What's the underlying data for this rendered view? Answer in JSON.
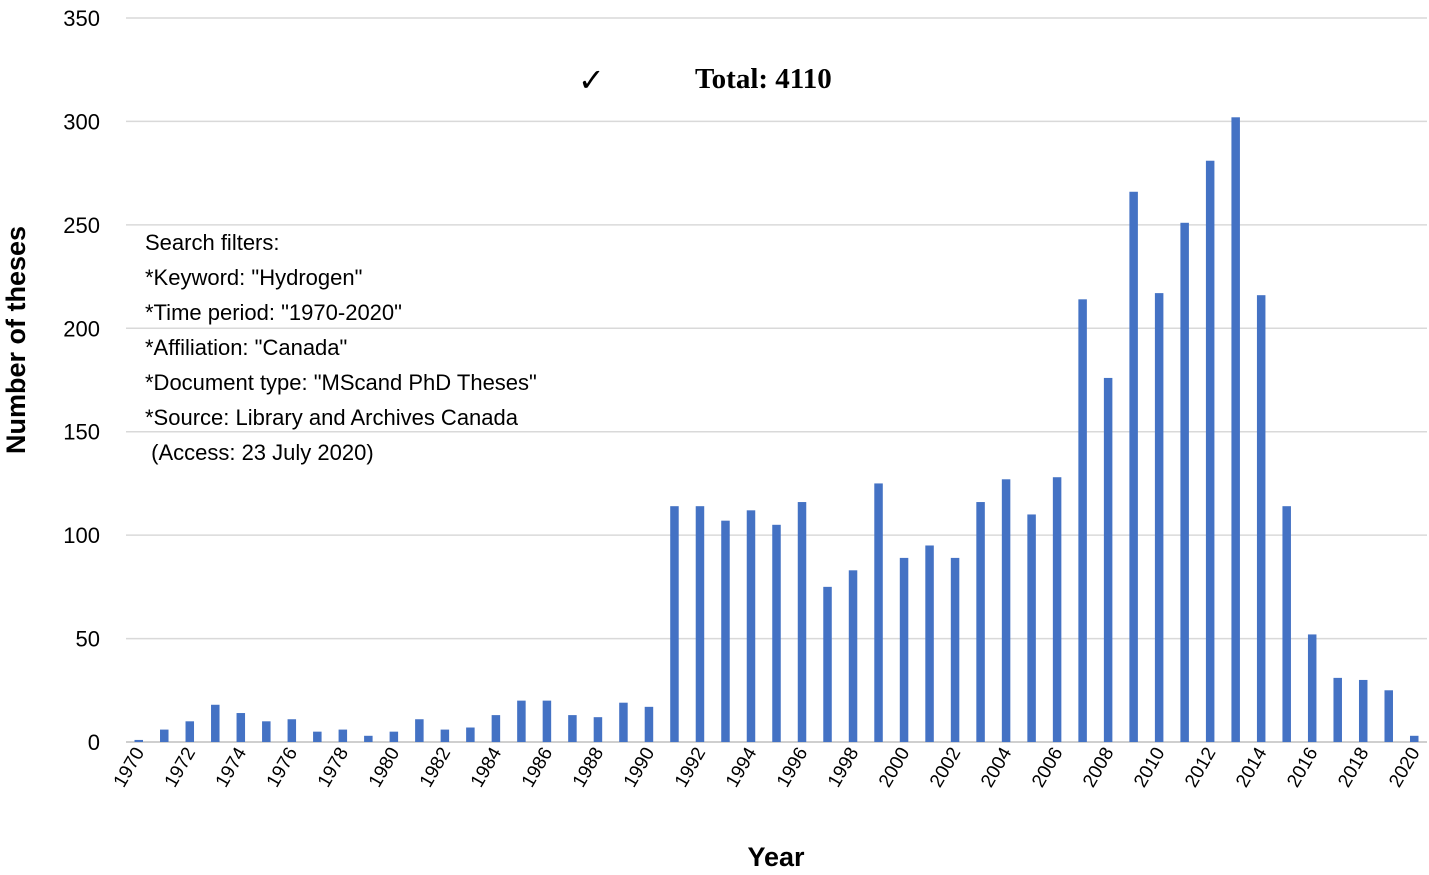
{
  "chart_data": {
    "type": "bar",
    "xlabel": "Year",
    "ylabel": "Number of theses",
    "ylim": [
      0,
      350
    ],
    "yticks": [
      0,
      50,
      100,
      150,
      200,
      250,
      300,
      350
    ],
    "grid": "horizontal",
    "bar_color": "#4472C4",
    "annotation": {
      "check": "✓",
      "text": "Total: 4110"
    },
    "notes": [
      "Search filters:",
      "*Keyword: \"Hydrogen\"",
      "*Time period: \"1970-2020\"",
      "*Affiliation: \"Canada\"",
      "*Document type: \"MScand PhD Theses\"",
      "*Source: Library and Archives Canada",
      " (Access: 23 July 2020)"
    ],
    "categories": [
      "1970",
      "1971",
      "1972",
      "1973",
      "1974",
      "1975",
      "1976",
      "1977",
      "1978",
      "1979",
      "1980",
      "1981",
      "1982",
      "1983",
      "1984",
      "1985",
      "1986",
      "1987",
      "1988",
      "1989",
      "1990",
      "1991",
      "1992",
      "1993",
      "1994",
      "1995",
      "1996",
      "1997",
      "1998",
      "1999",
      "2000",
      "2001",
      "2002",
      "2003",
      "2004",
      "2005",
      "2006",
      "2007",
      "2008",
      "2009",
      "2010",
      "2011",
      "2012",
      "2013",
      "2014",
      "2015",
      "2016",
      "2017",
      "2018",
      "2019",
      "2020"
    ],
    "tick_labels": [
      "1970",
      "1972",
      "1974",
      "1976",
      "1978",
      "1980",
      "1982",
      "1984",
      "1986",
      "1988",
      "1990",
      "1992",
      "1994",
      "1996",
      "1998",
      "2000",
      "2002",
      "2004",
      "2006",
      "2008",
      "2010",
      "2012",
      "2014",
      "2016",
      "2018",
      "2020"
    ],
    "values": [
      1,
      6,
      10,
      18,
      14,
      10,
      11,
      5,
      6,
      3,
      5,
      11,
      6,
      7,
      13,
      20,
      20,
      13,
      12,
      19,
      17,
      114,
      114,
      107,
      112,
      105,
      116,
      75,
      83,
      125,
      89,
      95,
      89,
      116,
      127,
      110,
      128,
      214,
      176,
      266,
      217,
      251,
      281,
      302,
      216,
      114,
      52,
      31,
      30,
      25,
      3
    ]
  }
}
